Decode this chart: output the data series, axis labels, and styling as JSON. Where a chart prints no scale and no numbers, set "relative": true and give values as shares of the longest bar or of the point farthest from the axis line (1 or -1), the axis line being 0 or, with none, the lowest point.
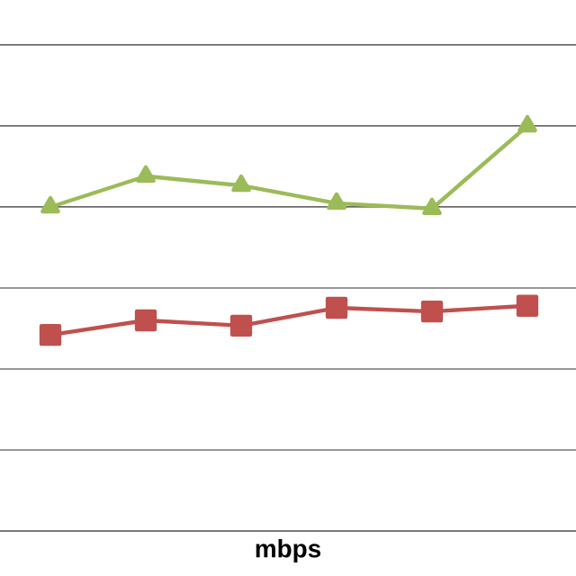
{
  "chart_data": {
    "type": "line",
    "xlabel": "mbps",
    "relative": true,
    "grid": "y",
    "categories": [
      null,
      null,
      null,
      null,
      null,
      null
    ],
    "series": [
      {
        "color": "#9bbb59",
        "marker": "triangle",
        "values": [
          0.8,
          0.876,
          0.853,
          0.809,
          0.796,
          1
        ]
      },
      {
        "color": "#c0504d",
        "marker": "square",
        "values": [
          0.484,
          0.52,
          0.507,
          0.551,
          0.542,
          0.556
        ]
      }
    ]
  }
}
